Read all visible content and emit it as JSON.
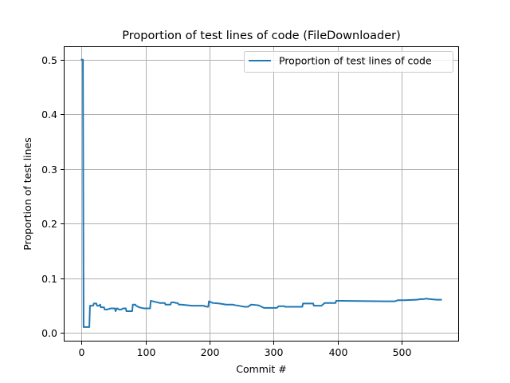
{
  "chart_data": {
    "type": "line",
    "title": "Proportion of test lines of code (FileDownloader)",
    "xlabel": "Commit #",
    "ylabel": "Proportion of test lines",
    "xlim": [
      -28,
      590
    ],
    "ylim": [
      -0.0155,
      0.5245
    ],
    "xticks": [
      0,
      100,
      200,
      300,
      400,
      500
    ],
    "yticks": [
      0.0,
      0.1,
      0.2,
      0.3,
      0.4,
      0.5
    ],
    "xtick_labels": [
      "0",
      "100",
      "200",
      "300",
      "400",
      "500"
    ],
    "ytick_labels": [
      "0.0",
      "0.1",
      "0.2",
      "0.3",
      "0.4",
      "0.5"
    ],
    "grid": true,
    "legend_position": "top-right",
    "series": [
      {
        "name": "Proportion of test lines of code",
        "color": "#1f77b4",
        "x": [
          0,
          2,
          3,
          12,
          13,
          18,
          19,
          23,
          24,
          27,
          29,
          30,
          35,
          36,
          40,
          45,
          52,
          53,
          55,
          56,
          58,
          62,
          65,
          69,
          70,
          73,
          76,
          79,
          80,
          84,
          85,
          90,
          98,
          107,
          108,
          115,
          122,
          124,
          130,
          131,
          136,
          139,
          140,
          145,
          147,
          150,
          152,
          156,
          172,
          190,
          196,
          198,
          199,
          205,
          215,
          226,
          236,
          240,
          250,
          255,
          260,
          265,
          275,
          278,
          285,
          305,
          308,
          310,
          317,
          318,
          325,
          345,
          346,
          362,
          363,
          372,
          375,
          380,
          397,
          398,
          405,
          475,
          476,
          490,
          494,
          505,
          523,
          524,
          530,
          535,
          538,
          545,
          555,
          562
        ],
        "y": [
          0.5,
          0.5,
          0.011,
          0.011,
          0.05,
          0.05,
          0.054,
          0.054,
          0.05,
          0.05,
          0.052,
          0.047,
          0.047,
          0.043,
          0.043,
          0.045,
          0.045,
          0.04,
          0.045,
          0.045,
          0.043,
          0.043,
          0.045,
          0.045,
          0.04,
          0.04,
          0.04,
          0.04,
          0.052,
          0.052,
          0.05,
          0.047,
          0.045,
          0.045,
          0.059,
          0.057,
          0.055,
          0.055,
          0.055,
          0.052,
          0.052,
          0.052,
          0.056,
          0.056,
          0.055,
          0.055,
          0.052,
          0.052,
          0.05,
          0.05,
          0.048,
          0.048,
          0.058,
          0.055,
          0.054,
          0.052,
          0.052,
          0.051,
          0.049,
          0.048,
          0.048,
          0.052,
          0.051,
          0.05,
          0.046,
          0.046,
          0.049,
          0.049,
          0.049,
          0.048,
          0.048,
          0.048,
          0.054,
          0.054,
          0.05,
          0.05,
          0.05,
          0.055,
          0.055,
          0.059,
          0.059,
          0.058,
          0.058,
          0.058,
          0.06,
          0.06,
          0.061,
          0.061,
          0.062,
          0.062,
          0.063,
          0.062,
          0.061,
          0.061
        ]
      }
    ]
  }
}
